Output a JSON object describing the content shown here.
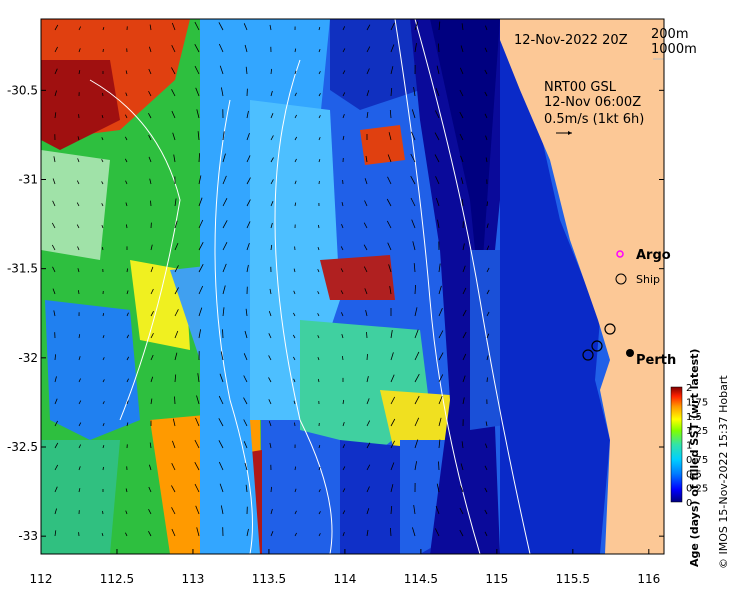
{
  "map": {
    "date_label": "12-Nov-2022 20Z",
    "isobaths": [
      "200m",
      "1000m"
    ],
    "current_source": "NRT00 GSL",
    "current_time": "12-Nov 06:00Z",
    "current_scale": "0.5m/s (1kt 6h)",
    "argo_label": "Argo",
    "ship_label": "Ship",
    "city_label": "Perth",
    "colors": {
      "land": "#fcc896",
      "isobath": "#ffffff",
      "argo": "#ff00ff"
    }
  },
  "axes": {
    "x_ticks": [
      "112",
      "112.5",
      "113",
      "113.5",
      "114",
      "114.5",
      "115",
      "115.5",
      "116"
    ],
    "y_ticks": [
      "-30.5",
      "-31",
      "-31.5",
      "-32",
      "-32.5",
      "-33"
    ],
    "xlim": [
      112,
      116.1
    ],
    "ylim": [
      -33.1,
      -30.1
    ]
  },
  "colorbar": {
    "title": "Age (days) of filled SST (wrt latest)",
    "ticks": [
      "2",
      "1.75",
      "1.5",
      "1.25",
      "1",
      "0.75",
      "0.5",
      "0.25",
      "0"
    ],
    "range": [
      0,
      2
    ],
    "colors": [
      "#00007f",
      "#0000ff",
      "#007fff",
      "#00cfff",
      "#33e3a8",
      "#7fff00",
      "#ffff00",
      "#ff9900",
      "#ff2200",
      "#7f0000"
    ]
  },
  "credit": "© IMOS 15-Nov-2022 15:37 Hobart"
}
